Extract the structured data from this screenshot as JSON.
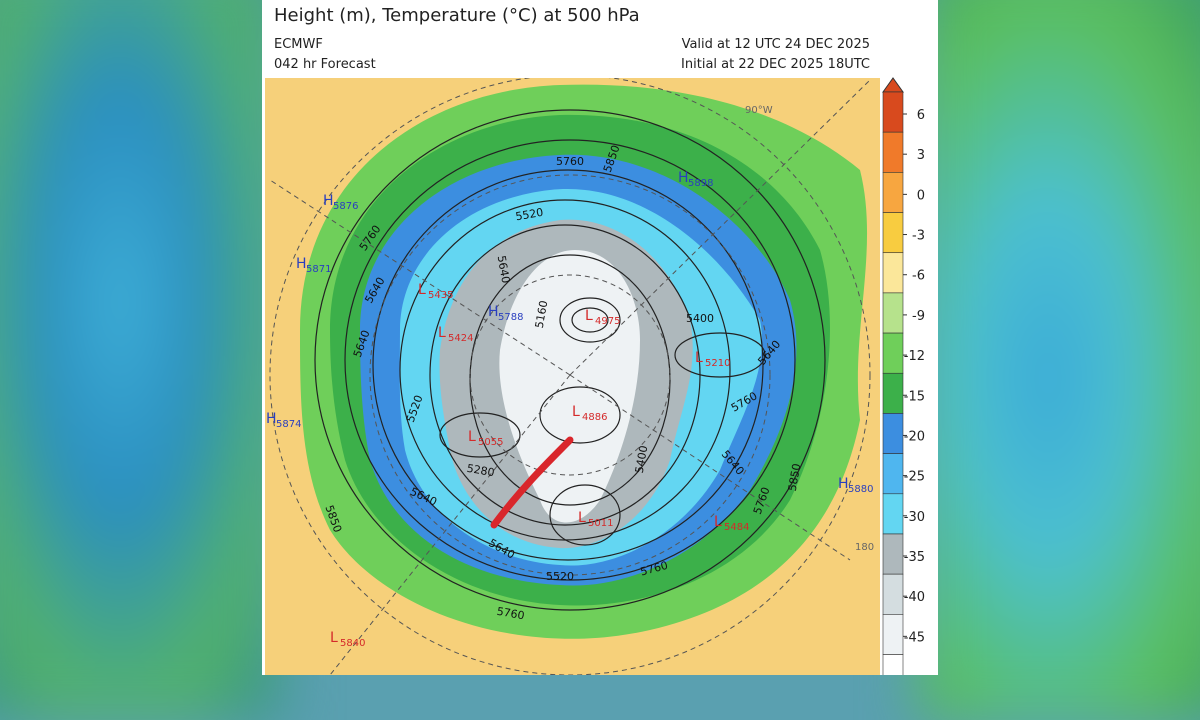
{
  "header": {
    "title": "Height (m), Temperature (°C) at 500 hPa",
    "model": "ECMWF",
    "forecast": "042 hr Forecast",
    "valid": "Valid at 12 UTC 24 DEC 2025",
    "initial": "Initial at 22 DEC 2025 18UTC"
  },
  "colorbar": {
    "ticks": [
      6,
      3,
      0,
      -3,
      -6,
      -9,
      -12,
      -15,
      -20,
      -25,
      -30,
      -35,
      -40,
      -45
    ],
    "colors": [
      "#d84a1e",
      "#f07a2a",
      "#f7a640",
      "#f8cc40",
      "#fbe79a",
      "#b6e28c",
      "#6fcf5a",
      "#3cb04a",
      "#3c8ee0",
      "#4fb6ef",
      "#63d6f2",
      "#aeb8bc",
      "#d4dde0",
      "#eef2f4",
      "#ffffff"
    ]
  },
  "map": {
    "grid_labels": [
      "90°W",
      "180"
    ],
    "centers": [
      {
        "kind": "H",
        "value": 5876
      },
      {
        "kind": "H",
        "value": 5871
      },
      {
        "kind": "H",
        "value": 5874
      },
      {
        "kind": "H",
        "value": 5898
      },
      {
        "kind": "H",
        "value": 5880
      },
      {
        "kind": "H",
        "value": 5788
      },
      {
        "kind": "L",
        "value": 5840
      },
      {
        "kind": "L",
        "value": 5435
      },
      {
        "kind": "L",
        "value": 5424
      },
      {
        "kind": "L",
        "value": 4975
      },
      {
        "kind": "L",
        "value": 5210
      },
      {
        "kind": "L",
        "value": 4886
      },
      {
        "kind": "L",
        "value": 5055
      },
      {
        "kind": "L",
        "value": 5011
      },
      {
        "kind": "L",
        "value": 5484
      }
    ],
    "contour_labels": [
      5760,
      5850,
      5520,
      5640,
      5760,
      5640,
      5160,
      5400,
      5640,
      5760,
      5520,
      5280,
      5400,
      5640,
      5640,
      5850,
      5760,
      5640,
      5520,
      5760,
      5760,
      5850,
      5640
    ]
  }
}
